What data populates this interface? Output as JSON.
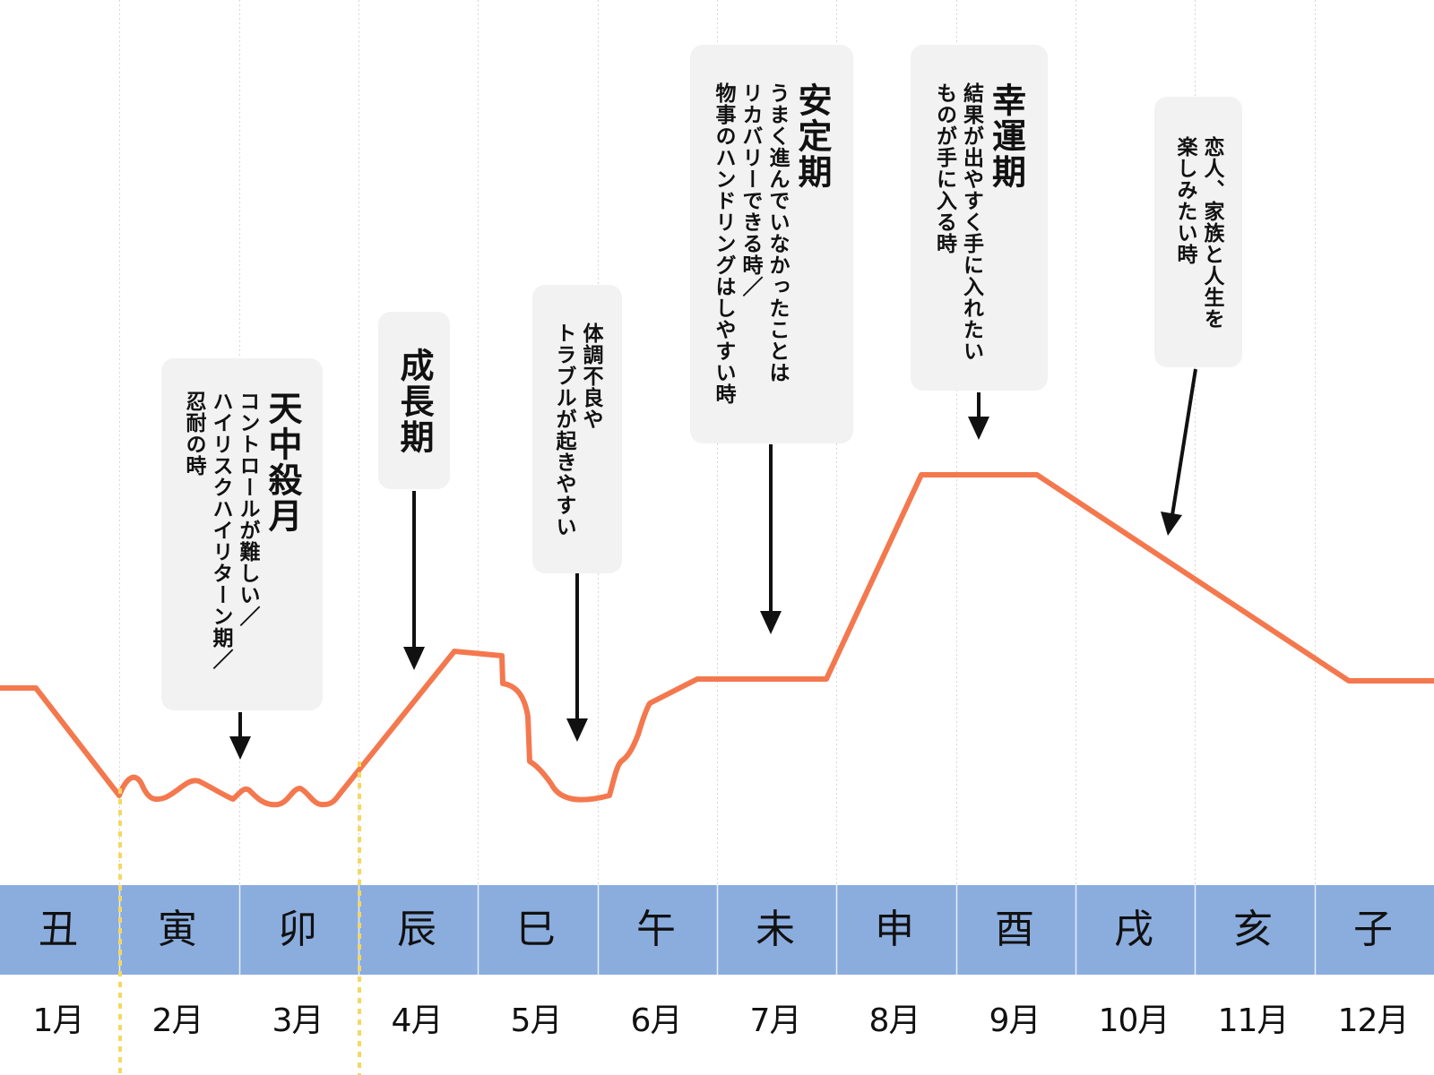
{
  "zodiac": [
    "丑",
    "寅",
    "卯",
    "辰",
    "巳",
    "午",
    "未",
    "申",
    "酉",
    "戌",
    "亥",
    "子"
  ],
  "months": [
    "1月",
    "2月",
    "3月",
    "4月",
    "5月",
    "6月",
    "7月",
    "8月",
    "9月",
    "10月",
    "11月",
    "12月"
  ],
  "phases": {
    "tenchusatsu": {
      "title": "天中殺月",
      "lines": [
        "コントロールが難しい／",
        "ハイリスクハイリターン期／",
        "忍耐の時"
      ]
    },
    "growth": {
      "title": "成長期",
      "lines": []
    },
    "health": {
      "title": "",
      "lines": [
        "体調不良や",
        "トラブルが起きやすい"
      ]
    },
    "stable": {
      "title": "安定期",
      "lines": [
        "うまく進んでいなかったことは",
        "リカバリーできる時／",
        "物事のハンドリングはしやすい時"
      ]
    },
    "lucky": {
      "title": "幸運期",
      "lines": [
        "結果が出やすく手に入れたい",
        "ものが手に入る時"
      ]
    },
    "family": {
      "title": "",
      "lines": [
        "恋人、家族と人生を",
        "楽しみたい時"
      ]
    }
  },
  "colors": {
    "line": "#f4784e",
    "band": "#8badde",
    "tenchusatsu_marker": "#f5d862",
    "box": "#f2f2f2"
  }
}
